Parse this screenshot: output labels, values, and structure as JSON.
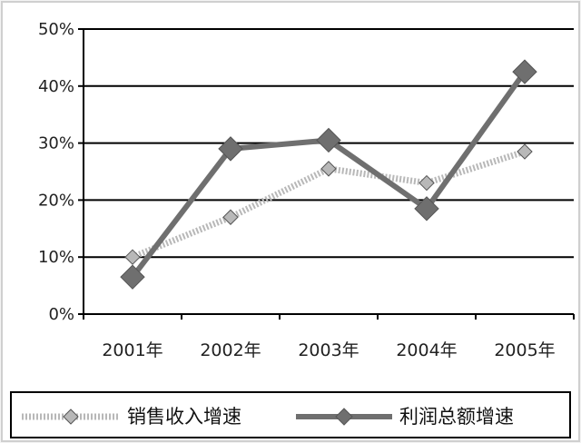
{
  "chart_data": {
    "type": "line",
    "title": "",
    "xlabel": "",
    "ylabel": "",
    "categories": [
      "2001年",
      "2002年",
      "2003年",
      "2004年",
      "2005年"
    ],
    "ylim": [
      0,
      50
    ],
    "yticks": [
      "0%",
      "10%",
      "20%",
      "30%",
      "40%",
      "50%"
    ],
    "grid": true,
    "legend_position": "bottom",
    "series": [
      {
        "name": "销售收入增速",
        "values": [
          10,
          17,
          25.5,
          23,
          28.5
        ],
        "color": "#b8b8b8",
        "style": "dotted",
        "marker": "diamond"
      },
      {
        "name": "利润总额增速",
        "values": [
          6.5,
          29,
          30.5,
          18.5,
          42.5
        ],
        "color": "#6f6f6f",
        "style": "solid",
        "marker": "diamond"
      }
    ]
  }
}
